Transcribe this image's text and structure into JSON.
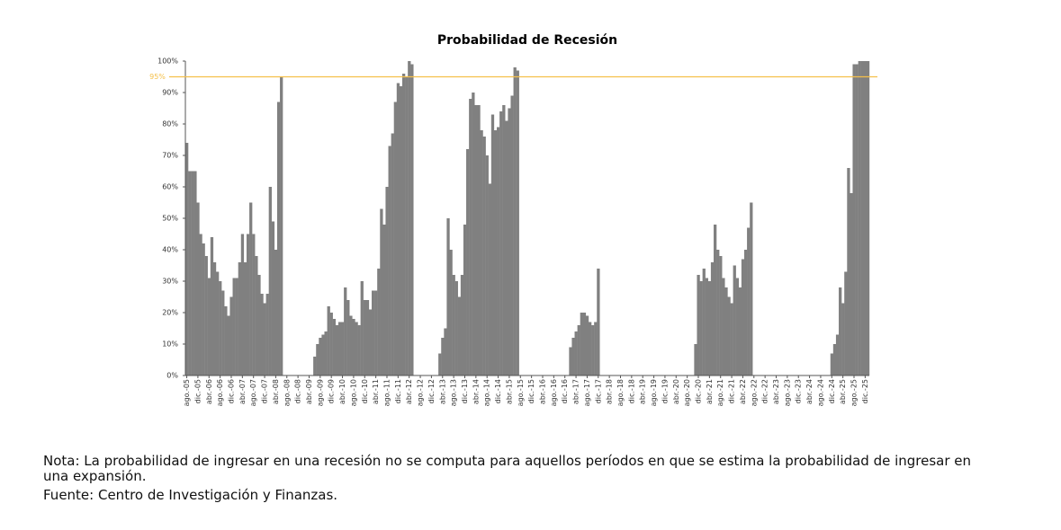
{
  "chart_data": {
    "type": "bar",
    "title": "Probabilidad de Recesión",
    "categories": [
      "ago.-05",
      null,
      null,
      null,
      "dic.-05",
      null,
      null,
      null,
      "abr.-06",
      null,
      null,
      null,
      "ago.-06",
      null,
      null,
      null,
      "dic.-06",
      null,
      null,
      null,
      "abr.-07",
      null,
      null,
      null,
      "ago.-07",
      null,
      null,
      null,
      "dic.-07",
      null,
      null,
      null,
      "abr.-08",
      null,
      null,
      null,
      "ago.-08",
      null,
      null,
      null,
      "dic.-08",
      null,
      null,
      null,
      "abr.-09",
      null,
      null,
      null,
      "ago.-09",
      null,
      null,
      null,
      "dic.-09",
      null,
      null,
      null,
      "abr.-10",
      null,
      null,
      null,
      "ago.-10",
      null,
      null,
      null,
      "dic.-10",
      null,
      null,
      null,
      "abr.-11",
      null,
      null,
      null,
      "ago.-11",
      null,
      null,
      null,
      "dic.-11",
      null,
      null,
      null,
      "abr.-12",
      null,
      null,
      null,
      "ago.-12",
      null,
      null,
      null,
      "dic.-12",
      null,
      null,
      null,
      "abr.-13",
      null,
      null,
      null,
      "ago.-13",
      null,
      null,
      null,
      "dic.-13",
      null,
      null,
      null,
      "abr.-14",
      null,
      null,
      null,
      "ago.-14",
      null,
      null,
      null,
      "dic.-14",
      null,
      null,
      null,
      "abr.-15",
      null,
      null,
      null,
      "ago.-15",
      null,
      null,
      null,
      "dic.-15",
      null,
      null,
      null,
      "abr.-16",
      null,
      null,
      null,
      "ago.-16",
      null,
      null,
      null,
      "dic.-16",
      null,
      null,
      null,
      "abr.-17",
      null,
      null,
      null,
      "ago.-17",
      null,
      null,
      null,
      "dic.-17",
      null,
      null,
      null,
      "abr.-18",
      null,
      null,
      null,
      "ago.-18",
      null,
      null,
      null,
      "dic.-18",
      null,
      null,
      null,
      "abr.-19",
      null,
      null,
      null,
      "ago.-19",
      null,
      null,
      null,
      "dic.-19",
      null,
      null,
      null,
      "abr.-20",
      null,
      null,
      null,
      "ago.-20",
      null,
      null,
      null,
      "dic.-20",
      null,
      null,
      null,
      "abr.-21",
      null,
      null,
      null,
      "ago.-21",
      null,
      null,
      null,
      "dic.-21",
      null,
      null,
      null,
      "abr.-22",
      null,
      null,
      null,
      "ago.-22",
      null,
      null,
      null,
      "dic.-22",
      null,
      null,
      null,
      "abr.-23",
      null,
      null,
      null,
      "ago.-23",
      null,
      null,
      null,
      "dic.-23",
      null,
      null,
      null,
      "abr.-24",
      null,
      null,
      null,
      "ago.-24",
      null,
      null,
      null,
      "dic.-24",
      null,
      null,
      null,
      "abr.-25",
      null,
      null,
      null,
      "ago.-25",
      null,
      null,
      null,
      "dic.-25",
      null
    ],
    "values": [
      74,
      65,
      65,
      65,
      55,
      45,
      42,
      38,
      31,
      44,
      36,
      33,
      30,
      27,
      22,
      19,
      25,
      31,
      31,
      36,
      45,
      36,
      45,
      55,
      45,
      38,
      32,
      26,
      23,
      26,
      60,
      49,
      40,
      87,
      95,
      null,
      null,
      null,
      null,
      null,
      null,
      null,
      null,
      null,
      null,
      null,
      6,
      10,
      12,
      13,
      14,
      22,
      20,
      18,
      16,
      17,
      17,
      28,
      24,
      19,
      18,
      17,
      16,
      30,
      24,
      24,
      21,
      27,
      27,
      34,
      53,
      48,
      60,
      73,
      77,
      87,
      93,
      92,
      96,
      95,
      100,
      99,
      null,
      null,
      null,
      null,
      null,
      null,
      null,
      null,
      null,
      7,
      12,
      15,
      50,
      40,
      32,
      30,
      25,
      32,
      48,
      72,
      88,
      90,
      86,
      86,
      78,
      76,
      70,
      61,
      83,
      78,
      79,
      84,
      86,
      81,
      85,
      89,
      98,
      97,
      null,
      null,
      null,
      null,
      null,
      null,
      null,
      null,
      null,
      null,
      null,
      null,
      null,
      null,
      null,
      null,
      null,
      null,
      9,
      12,
      14,
      16,
      20,
      20,
      19,
      17,
      16,
      17,
      34,
      null,
      null,
      null,
      null,
      null,
      null,
      null,
      null,
      null,
      null,
      null,
      null,
      null,
      null,
      null,
      null,
      null,
      null,
      null,
      null,
      null,
      null,
      null,
      null,
      null,
      null,
      null,
      null,
      null,
      null,
      null,
      null,
      null,
      null,
      10,
      32,
      30,
      34,
      31,
      30,
      36,
      48,
      40,
      38,
      31,
      28,
      25,
      23,
      35,
      31,
      28,
      37,
      40,
      47,
      55,
      null,
      null,
      null,
      null,
      null,
      null,
      null,
      null,
      null,
      null,
      null,
      null,
      null,
      null,
      null,
      null,
      null,
      null,
      null,
      null,
      null,
      null,
      null,
      null,
      null,
      null,
      null,
      null,
      7,
      10,
      13,
      28,
      23,
      33,
      66,
      58,
      99,
      99,
      100,
      100,
      100,
      100
    ],
    "color": "#808080",
    "ylim": [
      0,
      100
    ],
    "yticks": [
      {
        "value": 0,
        "label": "0%"
      },
      {
        "value": 10,
        "label": "10%"
      },
      {
        "value": 20,
        "label": "20%"
      },
      {
        "value": 30,
        "label": "30%"
      },
      {
        "value": 40,
        "label": "40%"
      },
      {
        "value": 50,
        "label": "50%"
      },
      {
        "value": 60,
        "label": "60%"
      },
      {
        "value": 70,
        "label": "70%"
      },
      {
        "value": 80,
        "label": "80%"
      },
      {
        "value": 90,
        "label": "90%"
      },
      {
        "value": 100,
        "label": "100%"
      }
    ],
    "threshold": {
      "value": 95,
      "label": "95%",
      "color": "#f5c04a"
    },
    "grid": false,
    "notes": [
      "Nota: La probabilidad de ingresar en una recesión no se computa para aquellos períodos en que se estima la probabilidad de ingresar en una expansión.",
      "Fuente: Centro de Investigación y Finanzas."
    ]
  }
}
